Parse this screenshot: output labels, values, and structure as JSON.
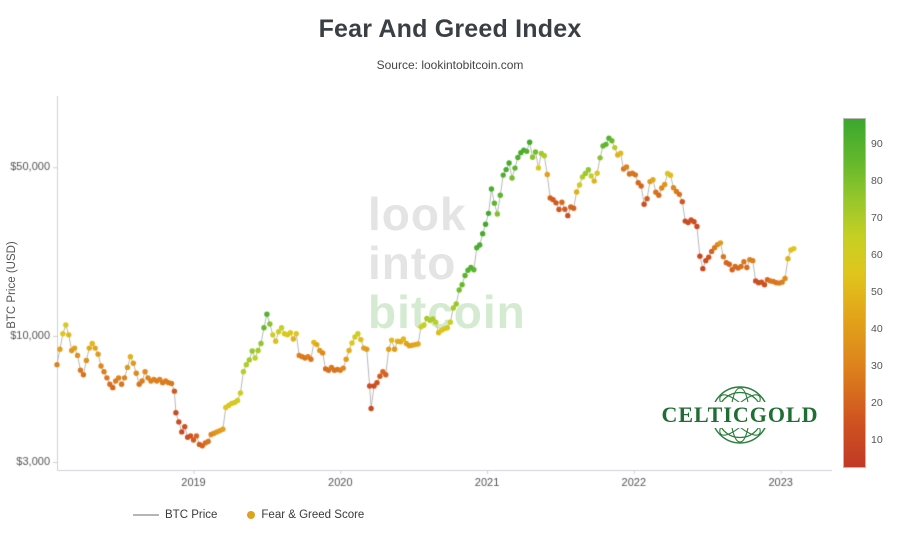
{
  "header": {
    "title": "Fear And Greed Index",
    "subtitle": "Source: lookintobitcoin.com"
  },
  "watermark": {
    "words": [
      "look",
      "into",
      "bitcoin"
    ],
    "gray_color": "#e4e4e4",
    "green_color": "#d5ebd1"
  },
  "logo": {
    "text": "CELTICGOLD",
    "color": "#1f6e33"
  },
  "legend": {
    "items": [
      {
        "label": "BTC Price",
        "swatch": "line",
        "color": "#b5b5b5"
      },
      {
        "label": "Fear & Greed Score",
        "swatch": "dot",
        "color": "#e0a21d"
      }
    ]
  },
  "chart_data": {
    "type": "scatter",
    "title": "Fear And Greed Index",
    "xlabel": "",
    "ylabel": "BTC Price (USD)",
    "y_scale": "log",
    "x_range": [
      2018.07,
      2023.35
    ],
    "y_range_log": [
      2780,
      95000
    ],
    "x_ticks": [
      {
        "label": "2019",
        "value": 2019
      },
      {
        "label": "2020",
        "value": 2020
      },
      {
        "label": "2021",
        "value": 2021
      },
      {
        "label": "2022",
        "value": 2022
      },
      {
        "label": "2023",
        "value": 2023
      }
    ],
    "y_ticks": [
      {
        "label": "$50,000",
        "value": 50000
      },
      {
        "label": "$10,000",
        "value": 10000
      },
      {
        "label": "$3,000",
        "value": 3000
      }
    ],
    "line_color": "#b9b9b9",
    "colorbar": {
      "min": 3,
      "max": 97,
      "ticks": [
        90,
        80,
        70,
        60,
        50,
        40,
        30,
        20,
        10
      ]
    },
    "colormap": [
      {
        "score": 0,
        "color": "#c03a25"
      },
      {
        "score": 15,
        "color": "#cf5220"
      },
      {
        "score": 30,
        "color": "#dd821c"
      },
      {
        "score": 45,
        "color": "#e2a81a"
      },
      {
        "score": 55,
        "color": "#e0c51c"
      },
      {
        "score": 65,
        "color": "#c6d023"
      },
      {
        "score": 75,
        "color": "#97c72b"
      },
      {
        "score": 85,
        "color": "#66b92c"
      },
      {
        "score": 97,
        "color": "#3ba72e"
      }
    ],
    "series_format": [
      "year_fraction",
      "btc_price_usd",
      "fear_greed_score"
    ],
    "points": [
      [
        2018.07,
        7600,
        30
      ],
      [
        2018.09,
        8800,
        42
      ],
      [
        2018.11,
        10200,
        55
      ],
      [
        2018.13,
        11100,
        60
      ],
      [
        2018.15,
        10100,
        50
      ],
      [
        2018.17,
        8700,
        38
      ],
      [
        2018.19,
        8900,
        42
      ],
      [
        2018.21,
        8300,
        36
      ],
      [
        2018.23,
        7200,
        27
      ],
      [
        2018.25,
        6900,
        25
      ],
      [
        2018.27,
        7900,
        36
      ],
      [
        2018.29,
        8900,
        45
      ],
      [
        2018.31,
        9300,
        50
      ],
      [
        2018.33,
        8900,
        44
      ],
      [
        2018.35,
        8400,
        40
      ],
      [
        2018.37,
        7500,
        32
      ],
      [
        2018.39,
        7100,
        29
      ],
      [
        2018.41,
        6700,
        27
      ],
      [
        2018.43,
        6300,
        24
      ],
      [
        2018.45,
        6100,
        22
      ],
      [
        2018.47,
        6500,
        28
      ],
      [
        2018.49,
        6700,
        30
      ],
      [
        2018.51,
        6300,
        26
      ],
      [
        2018.53,
        6700,
        31
      ],
      [
        2018.55,
        7400,
        39
      ],
      [
        2018.57,
        8200,
        48
      ],
      [
        2018.59,
        7700,
        40
      ],
      [
        2018.61,
        7000,
        33
      ],
      [
        2018.63,
        6300,
        26
      ],
      [
        2018.65,
        6500,
        28
      ],
      [
        2018.67,
        7100,
        34
      ],
      [
        2018.69,
        6700,
        30
      ],
      [
        2018.71,
        6500,
        29
      ],
      [
        2018.73,
        6600,
        30
      ],
      [
        2018.75,
        6500,
        29
      ],
      [
        2018.77,
        6600,
        30
      ],
      [
        2018.79,
        6400,
        28
      ],
      [
        2018.81,
        6500,
        29
      ],
      [
        2018.83,
        6400,
        28
      ],
      [
        2018.85,
        6350,
        27
      ],
      [
        2018.87,
        5900,
        17
      ],
      [
        2018.88,
        4800,
        10
      ],
      [
        2018.9,
        4400,
        11
      ],
      [
        2018.92,
        4000,
        10
      ],
      [
        2018.94,
        4200,
        14
      ],
      [
        2018.96,
        3800,
        12
      ],
      [
        2018.98,
        3850,
        15
      ],
      [
        2019.0,
        3700,
        18
      ],
      [
        2019.02,
        3850,
        21
      ],
      [
        2019.04,
        3550,
        18
      ],
      [
        2019.06,
        3500,
        20
      ],
      [
        2019.08,
        3600,
        24
      ],
      [
        2019.1,
        3650,
        26
      ],
      [
        2019.12,
        3900,
        32
      ],
      [
        2019.14,
        3950,
        35
      ],
      [
        2019.16,
        4000,
        38
      ],
      [
        2019.18,
        4050,
        40
      ],
      [
        2019.2,
        4100,
        43
      ],
      [
        2019.22,
        5050,
        55
      ],
      [
        2019.24,
        5150,
        56
      ],
      [
        2019.26,
        5250,
        58
      ],
      [
        2019.28,
        5300,
        59
      ],
      [
        2019.3,
        5400,
        60
      ],
      [
        2019.32,
        5800,
        63
      ],
      [
        2019.34,
        7100,
        68
      ],
      [
        2019.36,
        7600,
        70
      ],
      [
        2019.38,
        7950,
        72
      ],
      [
        2019.4,
        8650,
        75
      ],
      [
        2019.42,
        8100,
        66
      ],
      [
        2019.44,
        8700,
        72
      ],
      [
        2019.46,
        9300,
        76
      ],
      [
        2019.48,
        10800,
        85
      ],
      [
        2019.5,
        12300,
        90
      ],
      [
        2019.52,
        11200,
        78
      ],
      [
        2019.54,
        10100,
        62
      ],
      [
        2019.56,
        9500,
        53
      ],
      [
        2019.58,
        10400,
        62
      ],
      [
        2019.6,
        10800,
        65
      ],
      [
        2019.62,
        10200,
        58
      ],
      [
        2019.64,
        10100,
        56
      ],
      [
        2019.66,
        10300,
        58
      ],
      [
        2019.68,
        9700,
        48
      ],
      [
        2019.7,
        10200,
        55
      ],
      [
        2019.72,
        8300,
        30
      ],
      [
        2019.74,
        8200,
        28
      ],
      [
        2019.76,
        8100,
        27
      ],
      [
        2019.78,
        8200,
        29
      ],
      [
        2019.8,
        8000,
        26
      ],
      [
        2019.82,
        9400,
        50
      ],
      [
        2019.84,
        9200,
        45
      ],
      [
        2019.86,
        8700,
        38
      ],
      [
        2019.88,
        8500,
        34
      ],
      [
        2019.9,
        7300,
        22
      ],
      [
        2019.92,
        7200,
        24
      ],
      [
        2019.94,
        7400,
        27
      ],
      [
        2019.96,
        7200,
        25
      ],
      [
        2019.98,
        7250,
        26
      ],
      [
        2020.0,
        7200,
        28
      ],
      [
        2020.02,
        7350,
        32
      ],
      [
        2020.04,
        8000,
        40
      ],
      [
        2020.06,
        8700,
        48
      ],
      [
        2020.08,
        9350,
        55
      ],
      [
        2020.1,
        9900,
        60
      ],
      [
        2020.12,
        10200,
        63
      ],
      [
        2020.14,
        9650,
        52
      ],
      [
        2020.16,
        8900,
        42
      ],
      [
        2020.18,
        8800,
        40
      ],
      [
        2020.2,
        6200,
        12
      ],
      [
        2020.21,
        5000,
        9
      ],
      [
        2020.23,
        6200,
        12
      ],
      [
        2020.25,
        6400,
        14
      ],
      [
        2020.27,
        6800,
        18
      ],
      [
        2020.29,
        7100,
        22
      ],
      [
        2020.31,
        6900,
        20
      ],
      [
        2020.33,
        8800,
        42
      ],
      [
        2020.35,
        9600,
        52
      ],
      [
        2020.37,
        8800,
        40
      ],
      [
        2020.39,
        9500,
        48
      ],
      [
        2020.41,
        9450,
        46
      ],
      [
        2020.43,
        9700,
        50
      ],
      [
        2020.45,
        9300,
        44
      ],
      [
        2020.47,
        9100,
        42
      ],
      [
        2020.49,
        9150,
        43
      ],
      [
        2020.51,
        9200,
        44
      ],
      [
        2020.53,
        9250,
        45
      ],
      [
        2020.55,
        10900,
        62
      ],
      [
        2020.57,
        11100,
        65
      ],
      [
        2020.59,
        11800,
        72
      ],
      [
        2020.61,
        11600,
        70
      ],
      [
        2020.63,
        11750,
        71
      ],
      [
        2020.65,
        11400,
        67
      ],
      [
        2020.67,
        10300,
        52
      ],
      [
        2020.69,
        10550,
        55
      ],
      [
        2020.71,
        10700,
        57
      ],
      [
        2020.73,
        10800,
        58
      ],
      [
        2020.75,
        11400,
        64
      ],
      [
        2020.77,
        13050,
        72
      ],
      [
        2020.79,
        13550,
        75
      ],
      [
        2020.81,
        15500,
        82
      ],
      [
        2020.83,
        16300,
        85
      ],
      [
        2020.85,
        17800,
        88
      ],
      [
        2020.87,
        18700,
        90
      ],
      [
        2020.89,
        19200,
        91
      ],
      [
        2020.91,
        18800,
        88
      ],
      [
        2020.93,
        23200,
        92
      ],
      [
        2020.95,
        23800,
        93
      ],
      [
        2020.97,
        26500,
        94
      ],
      [
        2020.99,
        29000,
        95
      ],
      [
        2021.01,
        32200,
        95
      ],
      [
        2021.03,
        40600,
        93
      ],
      [
        2021.05,
        35500,
        88
      ],
      [
        2021.07,
        32000,
        80
      ],
      [
        2021.09,
        38300,
        88
      ],
      [
        2021.11,
        46400,
        92
      ],
      [
        2021.13,
        48900,
        93
      ],
      [
        2021.15,
        52100,
        94
      ],
      [
        2021.17,
        45100,
        82
      ],
      [
        2021.19,
        49600,
        88
      ],
      [
        2021.21,
        54900,
        92
      ],
      [
        2021.23,
        57400,
        93
      ],
      [
        2021.25,
        58900,
        93
      ],
      [
        2021.27,
        58200,
        90
      ],
      [
        2021.29,
        63500,
        95
      ],
      [
        2021.31,
        55000,
        78
      ],
      [
        2021.33,
        57800,
        82
      ],
      [
        2021.35,
        49700,
        60
      ],
      [
        2021.37,
        57000,
        73
      ],
      [
        2021.39,
        55800,
        70
      ],
      [
        2021.41,
        46700,
        42
      ],
      [
        2021.43,
        37300,
        20
      ],
      [
        2021.45,
        36700,
        18
      ],
      [
        2021.47,
        35600,
        17
      ],
      [
        2021.49,
        33400,
        16
      ],
      [
        2021.51,
        35800,
        22
      ],
      [
        2021.53,
        33500,
        18
      ],
      [
        2021.55,
        31500,
        13
      ],
      [
        2021.57,
        34200,
        21
      ],
      [
        2021.59,
        33800,
        20
      ],
      [
        2021.61,
        39500,
        48
      ],
      [
        2021.63,
        42200,
        60
      ],
      [
        2021.65,
        45600,
        70
      ],
      [
        2021.67,
        47100,
        74
      ],
      [
        2021.69,
        48800,
        76
      ],
      [
        2021.71,
        46000,
        65
      ],
      [
        2021.73,
        43800,
        48
      ],
      [
        2021.75,
        47200,
        58
      ],
      [
        2021.77,
        54700,
        78
      ],
      [
        2021.79,
        61300,
        86
      ],
      [
        2021.81,
        62200,
        87
      ],
      [
        2021.83,
        66000,
        90
      ],
      [
        2021.85,
        64400,
        84
      ],
      [
        2021.87,
        60300,
        68
      ],
      [
        2021.89,
        56200,
        48
      ],
      [
        2021.91,
        57200,
        50
      ],
      [
        2021.93,
        49200,
        27
      ],
      [
        2021.95,
        50100,
        30
      ],
      [
        2021.97,
        46900,
        24
      ],
      [
        2021.99,
        47200,
        26
      ],
      [
        2022.01,
        46500,
        25
      ],
      [
        2022.03,
        43100,
        22
      ],
      [
        2022.05,
        41800,
        21
      ],
      [
        2022.07,
        35100,
        12
      ],
      [
        2022.09,
        37000,
        18
      ],
      [
        2022.11,
        43600,
        40
      ],
      [
        2022.13,
        44400,
        45
      ],
      [
        2022.15,
        39400,
        25
      ],
      [
        2022.17,
        38300,
        23
      ],
      [
        2022.19,
        41000,
        32
      ],
      [
        2022.21,
        42400,
        38
      ],
      [
        2022.23,
        47100,
        55
      ],
      [
        2022.25,
        46300,
        52
      ],
      [
        2022.27,
        41100,
        32
      ],
      [
        2022.29,
        39700,
        28
      ],
      [
        2022.31,
        38600,
        25
      ],
      [
        2022.33,
        36000,
        17
      ],
      [
        2022.35,
        29900,
        10
      ],
      [
        2022.37,
        29500,
        11
      ],
      [
        2022.39,
        30200,
        14
      ],
      [
        2022.41,
        29700,
        12
      ],
      [
        2022.43,
        28400,
        10
      ],
      [
        2022.45,
        21400,
        8
      ],
      [
        2022.47,
        19000,
        9
      ],
      [
        2022.49,
        20500,
        11
      ],
      [
        2022.51,
        21200,
        14
      ],
      [
        2022.53,
        22400,
        20
      ],
      [
        2022.55,
        23200,
        27
      ],
      [
        2022.57,
        23900,
        32
      ],
      [
        2022.59,
        24300,
        39
      ],
      [
        2022.61,
        21300,
        27
      ],
      [
        2022.63,
        20100,
        22
      ],
      [
        2022.65,
        19800,
        21
      ],
      [
        2022.67,
        18800,
        20
      ],
      [
        2022.69,
        19400,
        23
      ],
      [
        2022.71,
        19100,
        22
      ],
      [
        2022.73,
        19400,
        24
      ],
      [
        2022.75,
        20300,
        26
      ],
      [
        2022.77,
        19200,
        23
      ],
      [
        2022.79,
        20700,
        30
      ],
      [
        2022.81,
        20500,
        29
      ],
      [
        2022.83,
        16900,
        12
      ],
      [
        2022.85,
        16600,
        13
      ],
      [
        2022.87,
        16700,
        15
      ],
      [
        2022.89,
        16300,
        14
      ],
      [
        2022.91,
        17100,
        22
      ],
      [
        2022.93,
        16900,
        26
      ],
      [
        2022.95,
        16800,
        27
      ],
      [
        2022.97,
        16600,
        26
      ],
      [
        2022.99,
        16550,
        27
      ],
      [
        2023.01,
        16700,
        29
      ],
      [
        2023.03,
        17300,
        33
      ],
      [
        2023.05,
        20900,
        48
      ],
      [
        2023.07,
        22700,
        53
      ],
      [
        2023.09,
        23000,
        55
      ]
    ]
  }
}
